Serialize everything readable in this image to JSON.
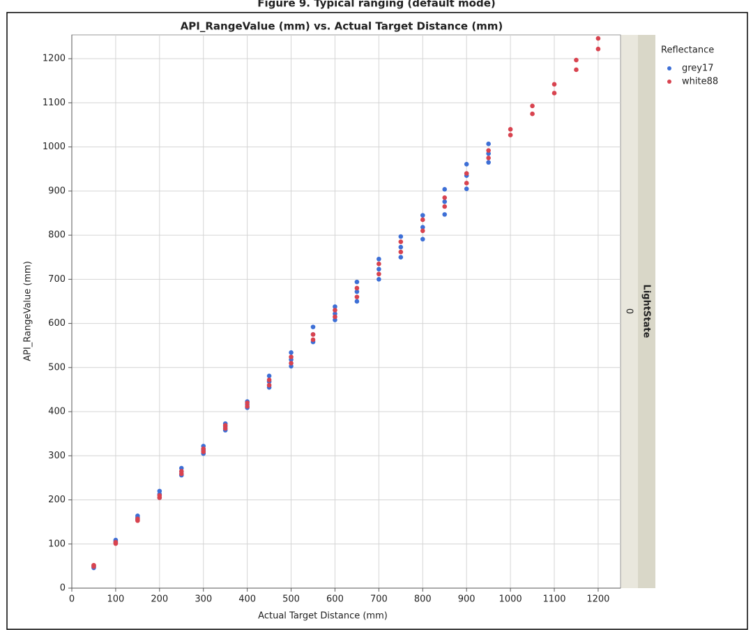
{
  "chart_data": {
    "type": "scatter",
    "figure_title": "Figure 9. Typical ranging (default mode)",
    "title": "API_RangeValue (mm) vs. Actual Target Distance (mm)",
    "x_label": "Actual Target Distance (mm)",
    "y_label": "API_RangeValue (mm)",
    "legend_title": "Reflectance",
    "facet_label": "LightState",
    "facet_value": "0",
    "xlim": [
      0,
      1251
    ],
    "ylim": [
      0,
      1254
    ],
    "xticks": [
      0,
      100,
      200,
      300,
      400,
      500,
      600,
      700,
      800,
      900,
      1000,
      1100,
      1200
    ],
    "yticks": [
      0,
      100,
      200,
      300,
      400,
      500,
      600,
      700,
      800,
      900,
      1000,
      1100,
      1200
    ],
    "grid": true,
    "series": [
      {
        "name": "grey17",
        "color": "#3d6fd6",
        "x": [
          50,
          50,
          50,
          100,
          100,
          100,
          150,
          150,
          150,
          200,
          200,
          200,
          250,
          250,
          250,
          300,
          300,
          300,
          350,
          350,
          350,
          400,
          400,
          400,
          450,
          450,
          450,
          500,
          500,
          500,
          550,
          550,
          550,
          600,
          600,
          600,
          650,
          650,
          650,
          700,
          700,
          700,
          750,
          750,
          750,
          800,
          800,
          800,
          850,
          850,
          850,
          900,
          900,
          900,
          950,
          950,
          950
        ],
        "values": [
          46,
          48,
          51,
          104,
          107,
          109,
          155,
          160,
          164,
          205,
          213,
          220,
          256,
          264,
          272,
          305,
          313,
          322,
          358,
          366,
          373,
          409,
          416,
          423,
          455,
          468,
          481,
          503,
          518,
          534,
          558,
          575,
          592,
          608,
          622,
          638,
          650,
          672,
          694,
          700,
          723,
          746,
          750,
          773,
          797,
          791,
          818,
          845,
          847,
          876,
          904,
          905,
          935,
          961,
          965,
          985,
          1007
        ]
      },
      {
        "name": "white88",
        "color": "#d8434f",
        "x": [
          50,
          50,
          100,
          100,
          150,
          150,
          200,
          200,
          250,
          250,
          300,
          300,
          350,
          350,
          400,
          400,
          450,
          450,
          500,
          500,
          550,
          550,
          600,
          600,
          650,
          650,
          700,
          700,
          750,
          750,
          800,
          800,
          850,
          850,
          900,
          900,
          950,
          950,
          1000,
          1000,
          1050,
          1050,
          1100,
          1100,
          1150,
          1150,
          1200,
          1200
        ],
        "values": [
          49,
          52,
          101,
          104,
          153,
          157,
          205,
          210,
          259,
          265,
          309,
          316,
          362,
          369,
          412,
          420,
          460,
          472,
          510,
          524,
          563,
          575,
          615,
          630,
          660,
          680,
          712,
          735,
          762,
          785,
          810,
          835,
          865,
          885,
          918,
          940,
          975,
          992,
          1027,
          1040,
          1075,
          1093,
          1122,
          1142,
          1175,
          1197,
          1222,
          1246
        ]
      }
    ]
  }
}
